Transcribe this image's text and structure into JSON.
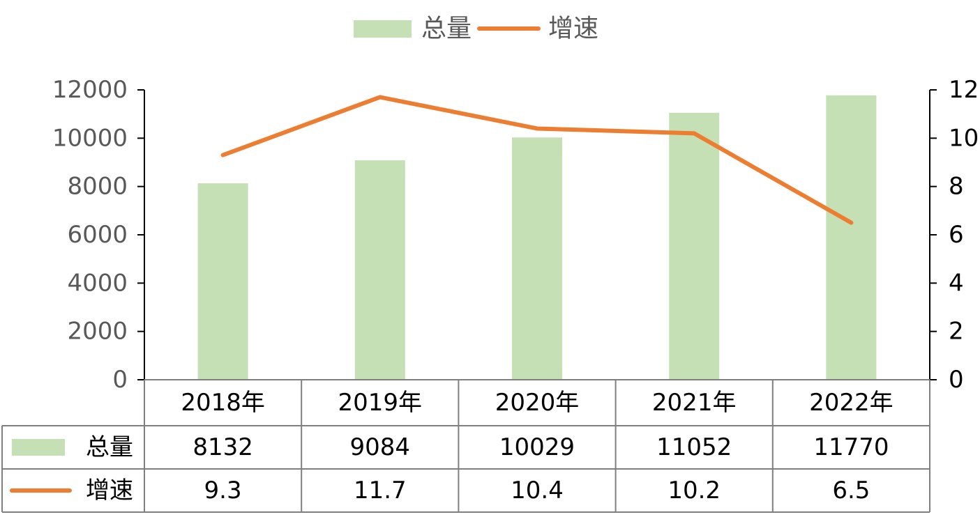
{
  "chart_data": {
    "type": "bar",
    "title": "",
    "xlabel": "",
    "ylabel": "",
    "categories": [
      "2018年",
      "2019年",
      "2020年",
      "2021年",
      "2022年"
    ],
    "series": [
      {
        "name": "总量",
        "type": "bar",
        "axis": "left",
        "color": "#c5e0b4",
        "values": [
          8132,
          9084,
          10029,
          11052,
          11770
        ]
      },
      {
        "name": "增速",
        "type": "line",
        "axis": "right",
        "color": "#ed7d31",
        "values": [
          9.3,
          11.7,
          10.4,
          10.2,
          6.5
        ]
      }
    ],
    "ylim": [
      0,
      12000
    ],
    "y2lim": [
      0,
      12
    ],
    "yticks": [
      "0",
      "2000",
      "4000",
      "6000",
      "8000",
      "10000",
      "12000"
    ],
    "y2ticks": [
      "0",
      "2",
      "4",
      "6",
      "8",
      "10",
      "12"
    ],
    "legend_position": "top-center",
    "data_table": {
      "rows": [
        {
          "label": "总量",
          "values": [
            "8132",
            "9084",
            "10029",
            "11052",
            "11770"
          ]
        },
        {
          "label": "增速",
          "values": [
            "9.3",
            "11.7",
            "10.4",
            "10.2",
            "6.5"
          ]
        }
      ]
    },
    "grid": false
  }
}
